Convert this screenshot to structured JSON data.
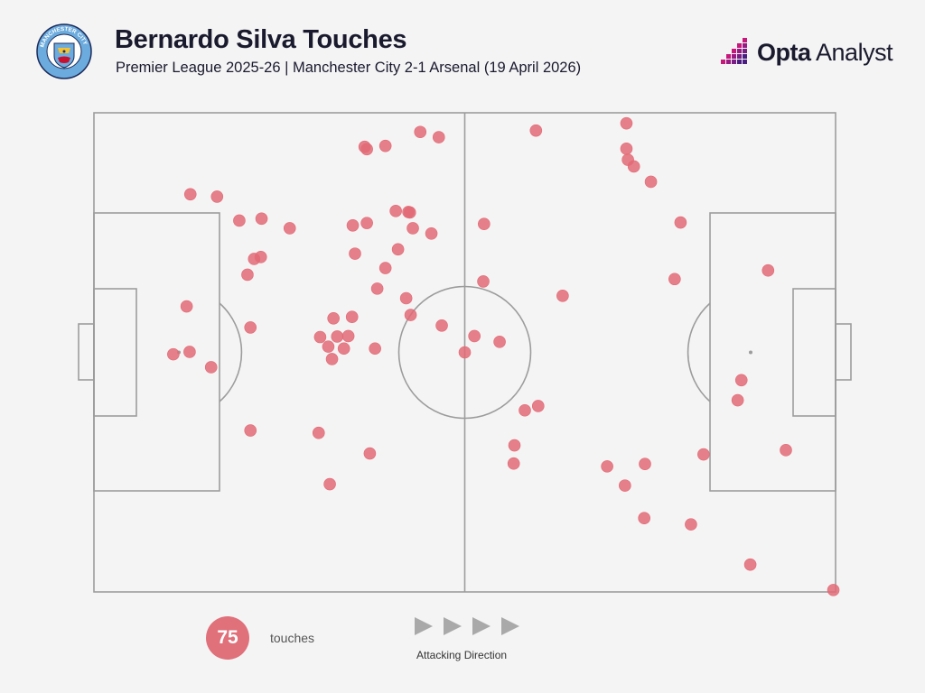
{
  "header": {
    "title": "Bernardo Silva Touches",
    "subtitle": "Premier League 2025-26 | Manchester City 2-1 Arsenal (19 April 2026)"
  },
  "crest": {
    "ring_text": "MANCHESTER CITY",
    "icon": "manchester-city-crest"
  },
  "brand": {
    "bold": "Opta",
    "light": " Analyst",
    "icon": "opta-analyst-logo"
  },
  "colors": {
    "background": "#f4f4f5",
    "pitch_lines": "#9c9c9c",
    "touch_fill": "#e26a75",
    "touch_highlight": "#dc3a47",
    "badge": "#e0707a",
    "arrow": "#a9a9a9",
    "brand_magenta": "#c8177a",
    "brand_purple": "#4b1d82"
  },
  "summary": {
    "count": "75",
    "label": "touches",
    "direction_label": "Attacking Direction"
  },
  "chart_data": {
    "type": "scatter",
    "title": "Bernardo Silva Touches",
    "xlabel": "",
    "ylabel": "",
    "xlim": [
      0,
      100
    ],
    "ylim": [
      0,
      100
    ],
    "grid": false,
    "legend": "none",
    "attacking_direction": "left-to-right",
    "touches": [
      [
        13,
        83
      ],
      [
        16.6,
        82.5
      ],
      [
        39.3,
        93.1
      ],
      [
        36.8,
        92.4
      ],
      [
        36.5,
        92.9
      ],
      [
        44,
        96
      ],
      [
        46.5,
        94.9
      ],
      [
        71.8,
        97.8
      ],
      [
        59.6,
        96.3
      ],
      [
        71.8,
        92.5
      ],
      [
        72,
        90.2
      ],
      [
        72.8,
        88.8
      ],
      [
        75.1,
        85.6
      ],
      [
        19.6,
        77.5
      ],
      [
        22.6,
        77.9
      ],
      [
        34.9,
        76.5
      ],
      [
        36.8,
        77
      ],
      [
        40.7,
        79.5
      ],
      [
        42.4,
        79.3
      ],
      [
        42.6,
        79.2
      ],
      [
        43,
        75.9
      ],
      [
        45.5,
        74.8
      ],
      [
        52.6,
        76.8
      ],
      [
        79.1,
        77.1
      ],
      [
        21.6,
        69.5
      ],
      [
        22.5,
        69.9
      ],
      [
        20.7,
        66.2
      ],
      [
        35.2,
        70.6
      ],
      [
        41,
        71.5
      ],
      [
        39.3,
        67.6
      ],
      [
        38.2,
        63.3
      ],
      [
        42.1,
        61.3
      ],
      [
        52.5,
        64.8
      ],
      [
        63.2,
        61.8
      ],
      [
        78.3,
        65.3
      ],
      [
        90.9,
        67.1
      ],
      [
        12.5,
        59.6
      ],
      [
        21.1,
        55.2
      ],
      [
        32.3,
        57.1
      ],
      [
        34.8,
        57.4
      ],
      [
        42.7,
        57.8
      ],
      [
        30.5,
        53.2
      ],
      [
        32.8,
        53.3
      ],
      [
        34.3,
        53.4
      ],
      [
        33.7,
        50.8
      ],
      [
        31.6,
        51.2
      ],
      [
        32.1,
        48.6
      ],
      [
        37.9,
        50.8
      ],
      [
        50,
        50
      ],
      [
        51.3,
        53.4
      ],
      [
        54.7,
        52.2
      ],
      [
        10.7,
        49.6
      ],
      [
        12.9,
        50.1
      ],
      [
        15.8,
        46.9
      ],
      [
        87.3,
        44.2
      ],
      [
        86.8,
        40
      ],
      [
        58.1,
        37.9
      ],
      [
        59.9,
        38.8
      ],
      [
        21.1,
        33.7
      ],
      [
        30.3,
        33.2
      ],
      [
        37.2,
        28.9
      ],
      [
        56.7,
        30.6
      ],
      [
        56.6,
        26.8
      ],
      [
        69.2,
        26.2
      ],
      [
        74.3,
        26.7
      ],
      [
        82.2,
        28.7
      ],
      [
        93.3,
        29.6
      ],
      [
        31.8,
        22.5
      ],
      [
        71.6,
        22.2
      ],
      [
        74.2,
        15.4
      ],
      [
        80.5,
        14.1
      ],
      [
        88.5,
        5.7
      ],
      [
        99.7,
        0.4
      ],
      [
        26.4,
        75.9
      ],
      [
        46.9,
        55.6
      ]
    ]
  }
}
